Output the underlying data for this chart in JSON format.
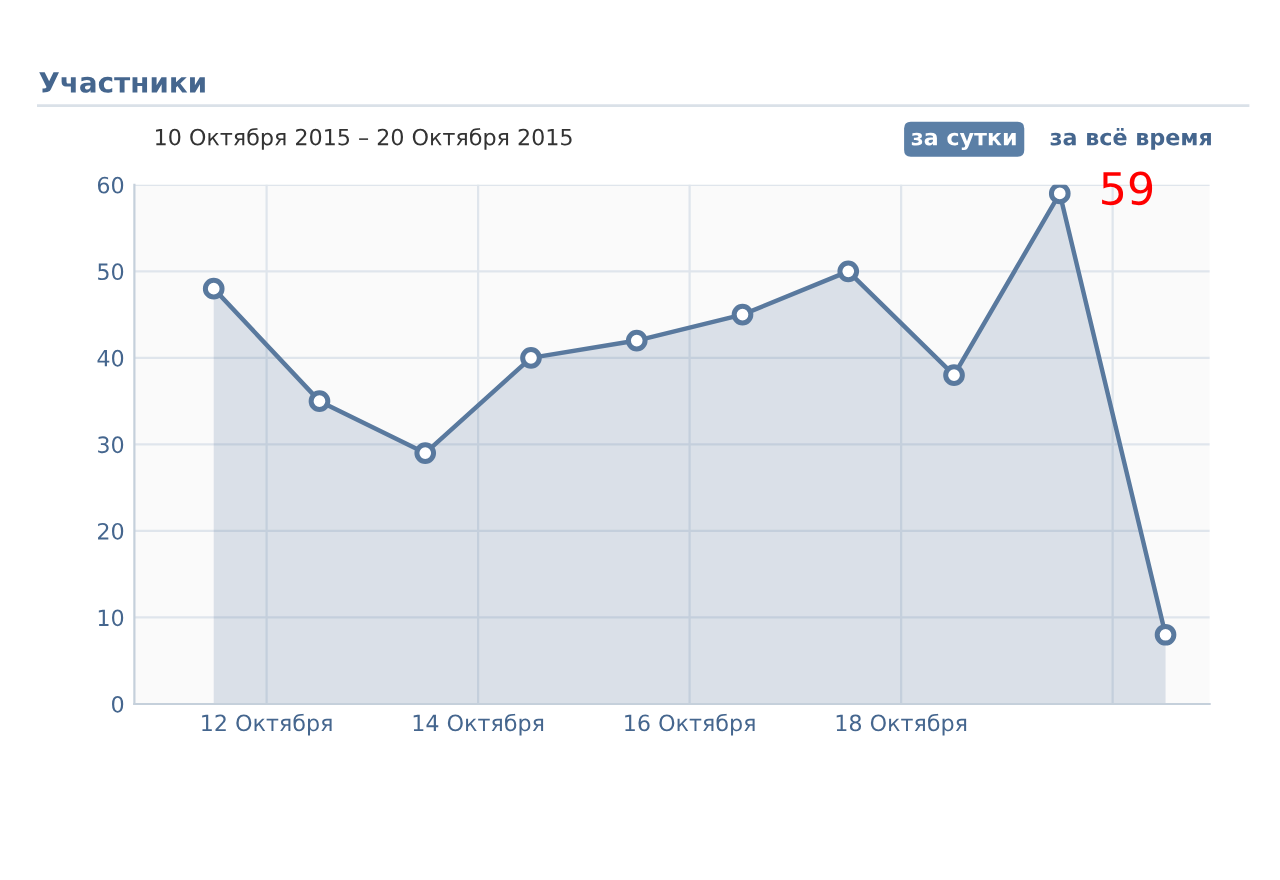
{
  "chart_data": {
    "type": "area",
    "title": "Участники",
    "subtitle": "10 Октября 2015 – 20 Октября 2015",
    "annotations": [
      "за сутки",
      "за всё время",
      {
        "text": "59",
        "x": "2015-10-19T12:00",
        "y": 59
      }
    ],
    "x": [
      "2015-10-11T12:00",
      "2015-10-12T12:00",
      "2015-10-13T12:00",
      "2015-10-14T12:00",
      "2015-10-15T12:00",
      "2015-10-16T12:00",
      "2015-10-17T12:00",
      "2015-10-18T12:00",
      "2015-10-19T12:00",
      "2015-10-20T12:00"
    ],
    "series": [
      {
        "color": "#59799e",
        "values": [
          48,
          35,
          29,
          40,
          42,
          45,
          50,
          38,
          59,
          8
        ]
      }
    ],
    "xlim": [
      "2015-10-10T18:00",
      "2015-10-20T22:00"
    ],
    "xticks": [
      {
        "value": "2015-10-12",
        "label": "12 Октября"
      },
      {
        "value": "2015-10-14",
        "label": "14 Октября"
      },
      {
        "value": "2015-10-16",
        "label": "16 Октября"
      },
      {
        "value": "2015-10-18",
        "label": "18 Октября"
      },
      {
        "value": "2015-10-20",
        "label": null
      }
    ],
    "ylim": [
      0,
      60
    ],
    "yticks": [
      0,
      10,
      20,
      30,
      40,
      50,
      60
    ],
    "grid": true,
    "marker": "circle",
    "line_style": "solid"
  }
}
